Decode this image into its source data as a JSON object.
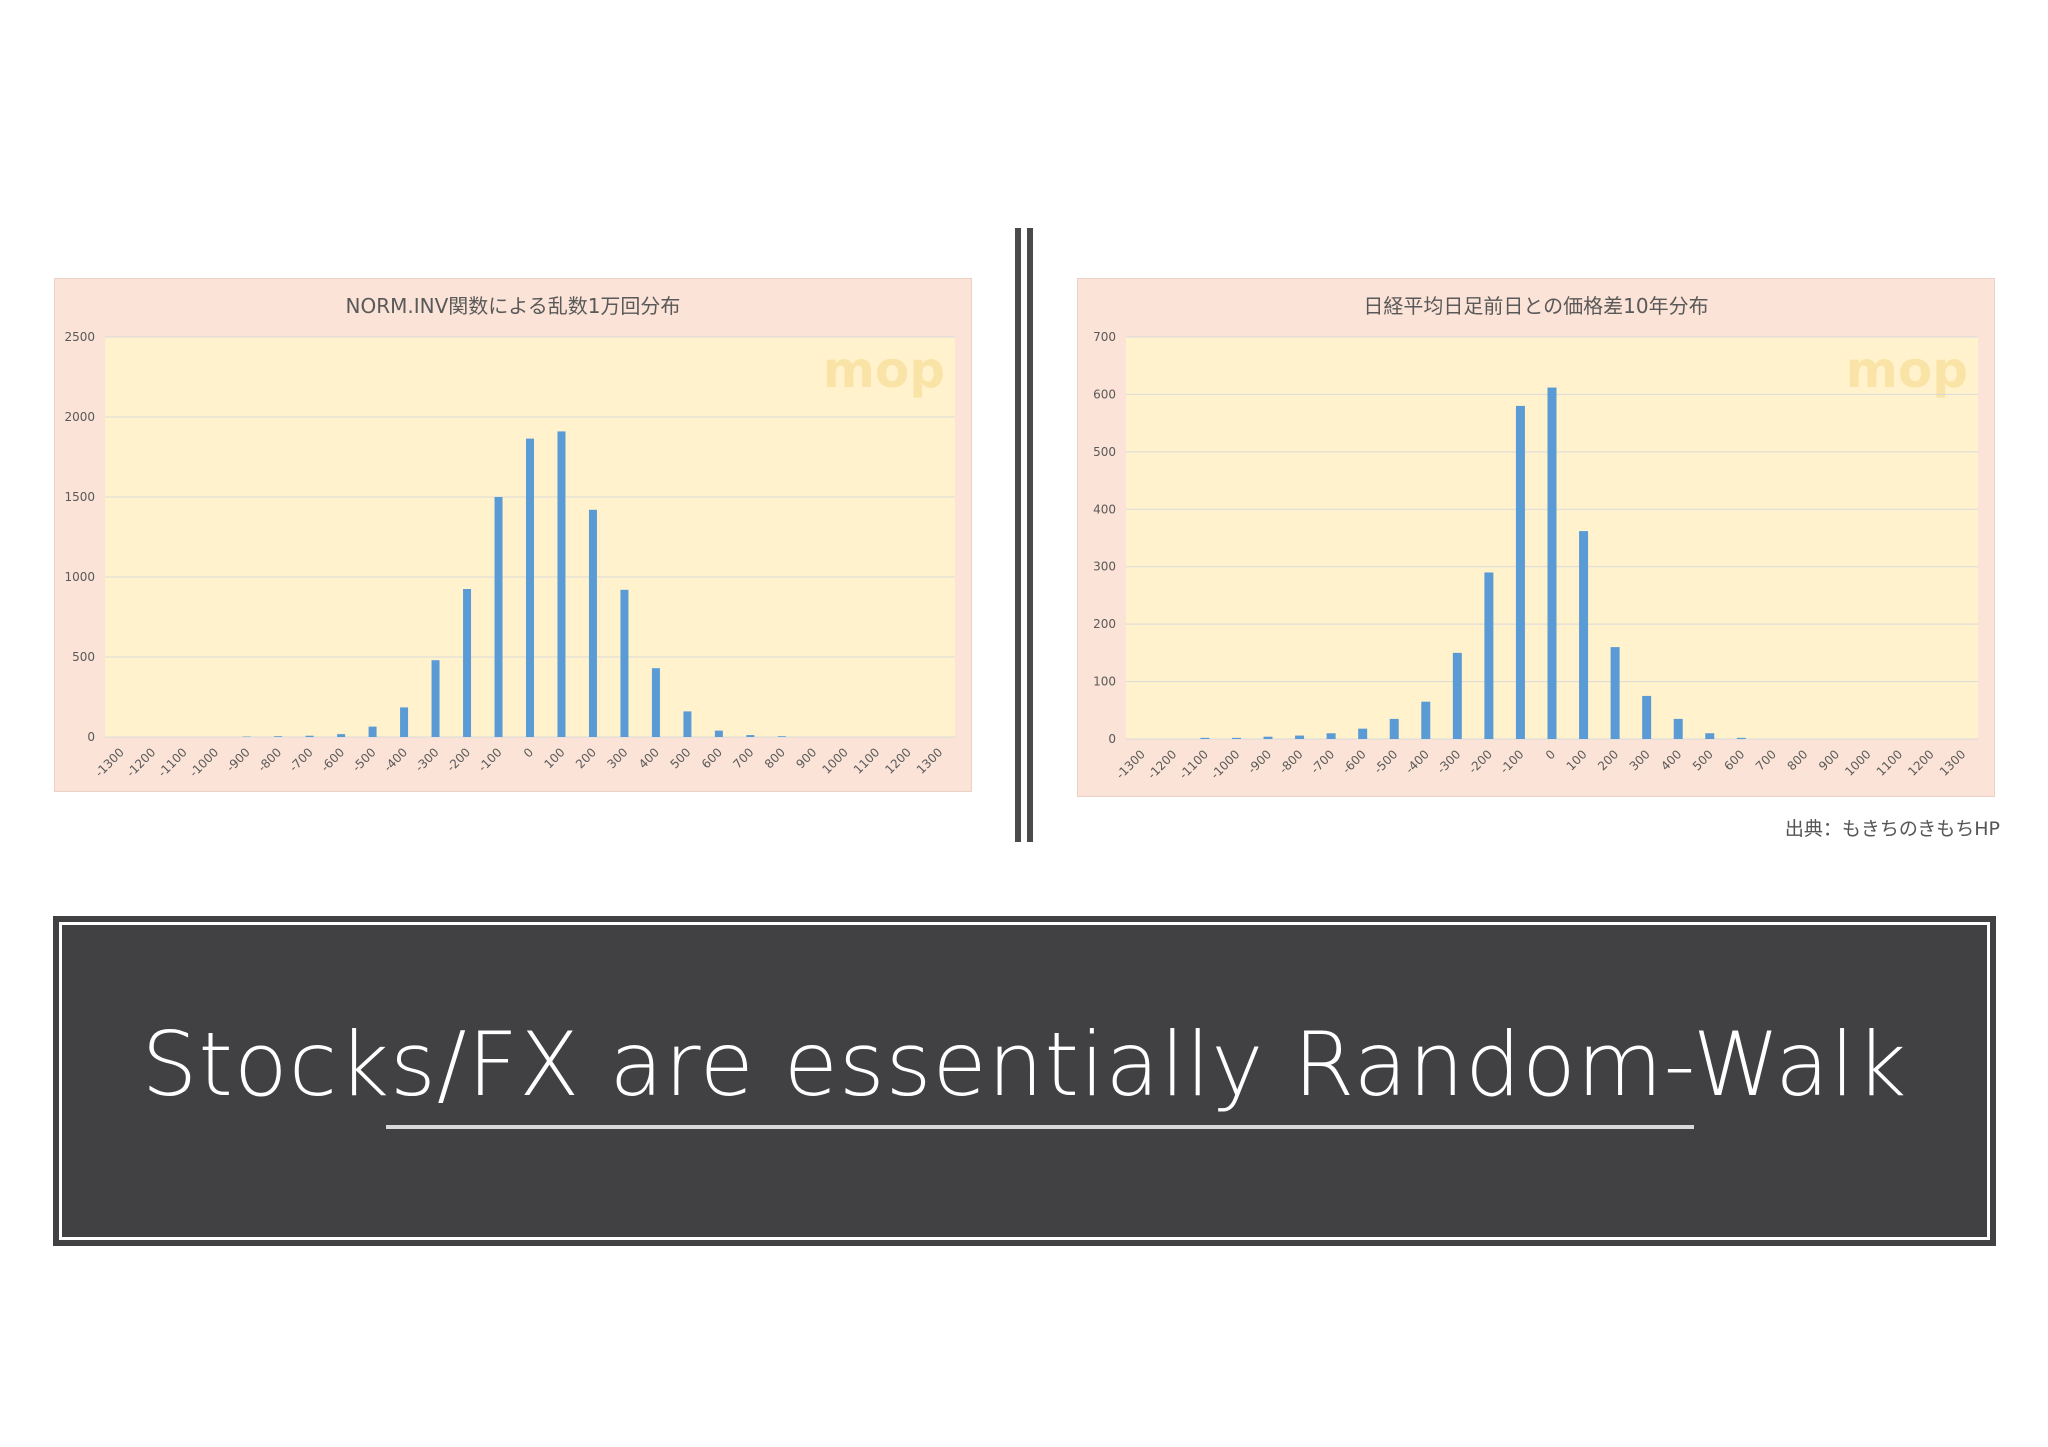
{
  "chart_data": [
    {
      "type": "bar",
      "title": "NORM.INV関数による乱数1万回分布",
      "xlabel": "",
      "ylabel": "",
      "ylim": [
        0,
        2500
      ],
      "yticks": [
        0,
        500,
        1000,
        1500,
        2000,
        2500
      ],
      "grid": true,
      "legend": "none",
      "bar_color": "#5b9bd5",
      "plot_bg": "#fff2cc",
      "panel_bg": "#fbe3d7",
      "watermark": "mop",
      "categories": [
        "-1300",
        "-1200",
        "-1100",
        "-1000",
        "-900",
        "-800",
        "-700",
        "-600",
        "-500",
        "-400",
        "-300",
        "-200",
        "-100",
        "0",
        "100",
        "200",
        "300",
        "400",
        "500",
        "600",
        "700",
        "800",
        "900",
        "1000",
        "1100",
        "1200",
        "1300"
      ],
      "values": [
        0,
        0,
        0,
        0,
        3,
        5,
        8,
        18,
        65,
        185,
        480,
        925,
        1500,
        1865,
        1910,
        1420,
        920,
        430,
        160,
        40,
        12,
        5,
        0,
        0,
        0,
        0,
        0
      ]
    },
    {
      "type": "bar",
      "title": "日経平均日足前日との価格差10年分布",
      "xlabel": "",
      "ylabel": "",
      "ylim": [
        0,
        700
      ],
      "yticks": [
        0,
        100,
        200,
        300,
        400,
        500,
        600,
        700
      ],
      "grid": true,
      "legend": "none",
      "bar_color": "#5b9bd5",
      "plot_bg": "#fff2cc",
      "panel_bg": "#fbe3d7",
      "watermark": "mop",
      "categories": [
        "-1300",
        "-1200",
        "-1100",
        "-1000",
        "-900",
        "-800",
        "-700",
        "-600",
        "-500",
        "-400",
        "-300",
        "-200",
        "-100",
        "0",
        "100",
        "200",
        "300",
        "400",
        "500",
        "600",
        "700",
        "800",
        "900",
        "1000",
        "1100",
        "1200",
        "1300"
      ],
      "values": [
        0,
        0,
        2,
        2,
        4,
        6,
        10,
        18,
        35,
        65,
        150,
        290,
        580,
        612,
        362,
        160,
        75,
        35,
        10,
        2,
        0,
        0,
        0,
        0,
        0,
        0,
        0
      ]
    }
  ],
  "source_note": "出典：もきちのきもちHP",
  "banner": {
    "text": "Stocks/FX are essentially Random-Walk"
  }
}
